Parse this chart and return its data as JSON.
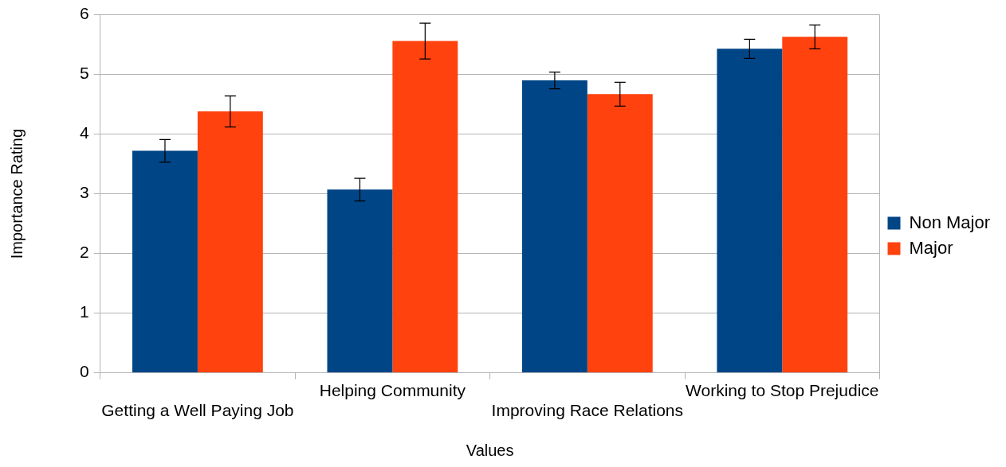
{
  "chart_data": {
    "type": "bar",
    "xlabel": "Values",
    "ylabel": "Importance Rating",
    "categories": [
      "Getting a Well Paying Job",
      "Helping Community",
      "Improving Race Relations",
      "Working to Stop Prejudice"
    ],
    "series": [
      {
        "name": "Non Major",
        "color": "#004586",
        "values": [
          3.72,
          3.07,
          4.9,
          5.43
        ],
        "errors": [
          0.19,
          0.19,
          0.14,
          0.16
        ]
      },
      {
        "name": "Major",
        "color": "#ff420e",
        "values": [
          4.38,
          5.56,
          4.67,
          5.63
        ],
        "errors": [
          0.26,
          0.3,
          0.2,
          0.2
        ]
      }
    ],
    "ylim": [
      0,
      6
    ],
    "yticks": [
      0,
      1,
      2,
      3,
      4,
      5,
      6
    ],
    "grid": "y",
    "legend": "right"
  }
}
